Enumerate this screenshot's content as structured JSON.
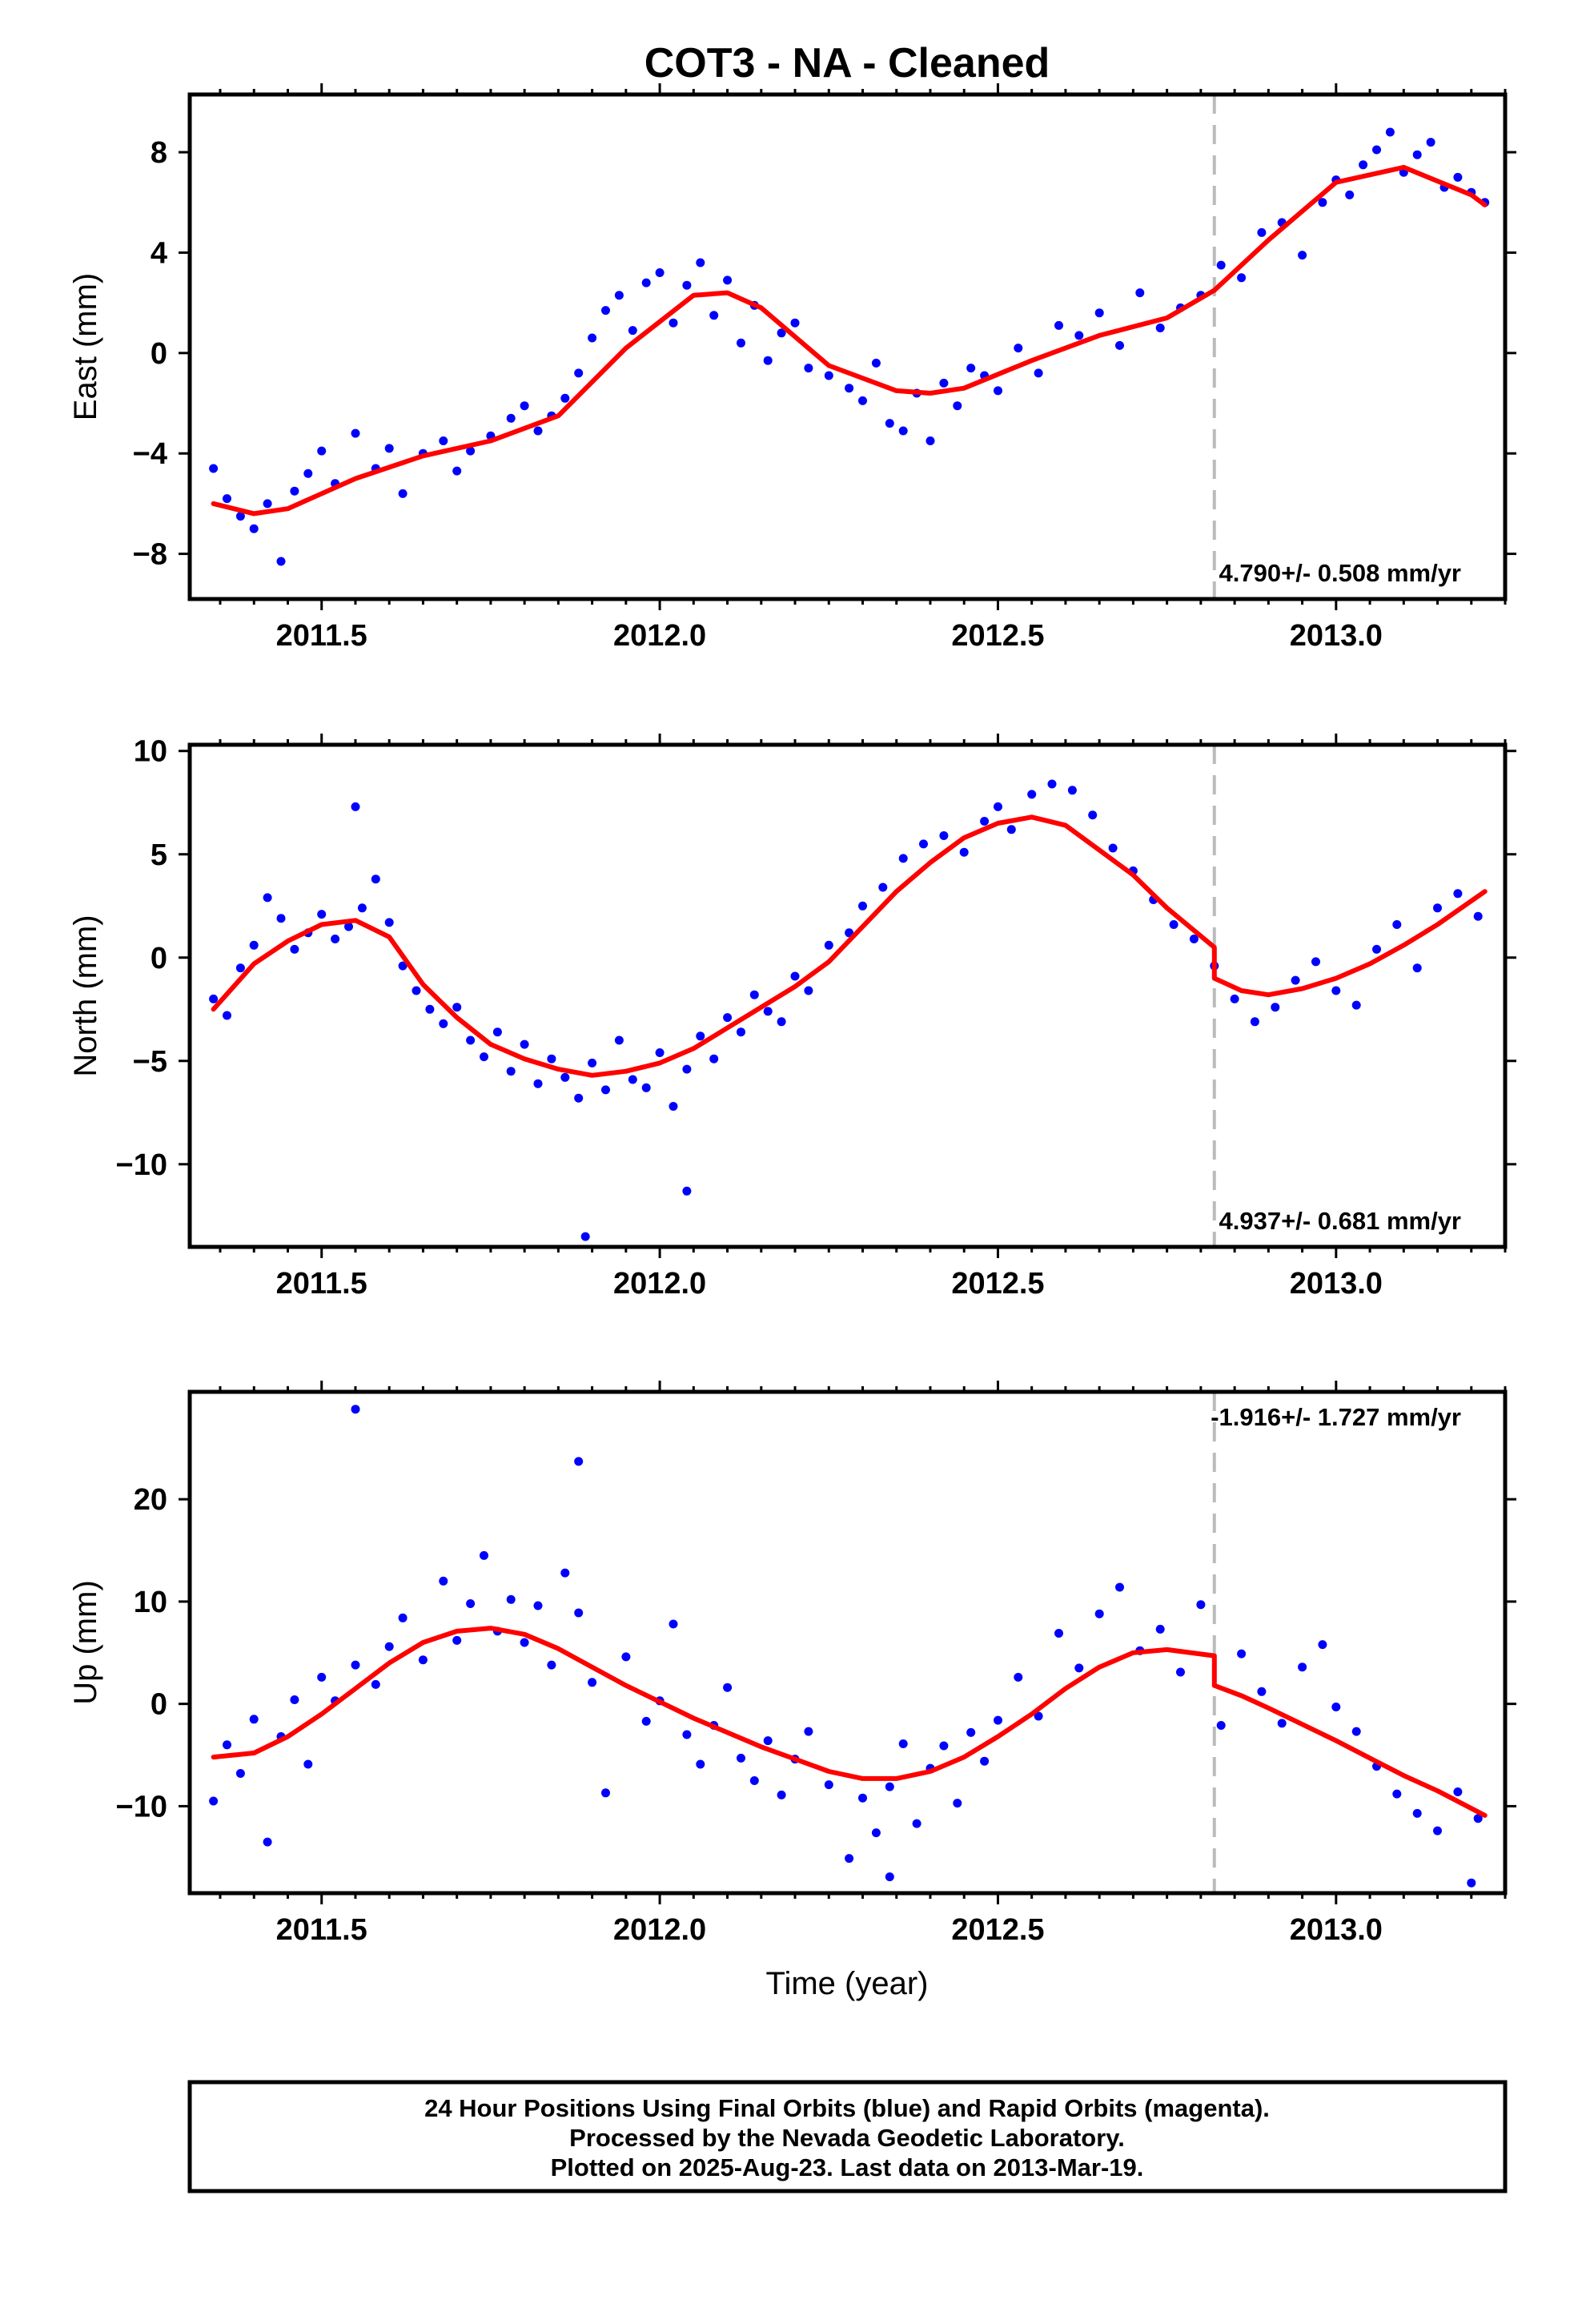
{
  "title": "COT3  - NA - Cleaned",
  "xlabel": "Time (year)",
  "caption": [
    "24 Hour Positions Using Final Orbits (blue) and Rapid Orbits (magenta).",
    "Processed by the Nevada Geodetic Laboratory.",
    "Plotted on 2025-Aug-23. Last data on 2013-Mar-19."
  ],
  "colors": {
    "final_orbits": "#0000ff",
    "rapid_orbits": "#ff00ff",
    "model_fit": "#ff0000",
    "equipment_change": "#bbbbbb"
  },
  "chart_data": [
    {
      "type": "scatter",
      "component": "East",
      "ylabel": "East (mm)",
      "xlim": [
        2011.305,
        2013.25
      ],
      "ylim": [
        -9.8,
        10.3
      ],
      "yticks": [
        -8,
        -4,
        0,
        4,
        8
      ],
      "xticks": [
        2011.5,
        2012.0,
        2012.5,
        2013.0
      ],
      "xtick_labels": [
        "2011.5",
        "2012.0",
        "2012.5",
        "2013.0"
      ],
      "rate_label": "4.790+/- 0.508 mm/yr",
      "break_epoch": 2012.82,
      "fit": {
        "x": [
          2011.34,
          2011.4,
          2011.45,
          2011.55,
          2011.65,
          2011.75,
          2011.85,
          2011.95,
          2012.05,
          2012.1,
          2012.15,
          2012.25,
          2012.35,
          2012.4,
          2012.45,
          2012.55,
          2012.65,
          2012.75,
          2012.82,
          2012.9,
          2013.0,
          2013.1,
          2013.2,
          2013.22
        ],
        "y": [
          -6.0,
          -6.4,
          -6.2,
          -5.0,
          -4.1,
          -3.5,
          -2.5,
          0.2,
          2.3,
          2.4,
          1.8,
          -0.5,
          -1.5,
          -1.6,
          -1.4,
          -0.3,
          0.7,
          1.4,
          2.5,
          4.5,
          6.8,
          7.4,
          6.3,
          5.9
        ]
      },
      "series": [
        {
          "name": "Final Orbits",
          "color": "#0000ff",
          "x": [
            2011.34,
            2011.36,
            2011.38,
            2011.4,
            2011.42,
            2011.44,
            2011.46,
            2011.48,
            2011.5,
            2011.52,
            2011.55,
            2011.58,
            2011.6,
            2011.62,
            2011.65,
            2011.68,
            2011.7,
            2011.72,
            2011.75,
            2011.78,
            2011.8,
            2011.82,
            2011.84,
            2011.86,
            2011.88,
            2011.9,
            2011.92,
            2011.94,
            2011.96,
            2011.98,
            2012.0,
            2012.02,
            2012.04,
            2012.06,
            2012.08,
            2012.1,
            2012.12,
            2012.14,
            2012.16,
            2012.18,
            2012.2,
            2012.22,
            2012.25,
            2012.28,
            2012.3,
            2012.32,
            2012.34,
            2012.36,
            2012.38,
            2012.4,
            2012.42,
            2012.44,
            2012.46,
            2012.48,
            2012.5,
            2012.53,
            2012.56,
            2012.59,
            2012.62,
            2012.65,
            2012.68,
            2012.71,
            2012.74,
            2012.77,
            2012.8,
            2012.83,
            2012.86,
            2012.89,
            2012.92,
            2012.95,
            2012.98,
            2013.0,
            2013.02,
            2013.04,
            2013.06,
            2013.08,
            2013.1,
            2013.12,
            2013.14,
            2013.16,
            2013.18,
            2013.2,
            2013.22
          ],
          "y": [
            -4.6,
            -5.8,
            -6.5,
            -7.0,
            -6.0,
            -8.3,
            -5.5,
            -4.8,
            -3.9,
            -5.2,
            -3.2,
            -4.6,
            -3.8,
            -5.6,
            -4.0,
            -3.5,
            -4.7,
            -3.9,
            -3.3,
            -2.6,
            -2.1,
            -3.1,
            -2.5,
            -1.8,
            -0.8,
            0.6,
            1.7,
            2.3,
            0.9,
            2.8,
            3.2,
            1.2,
            2.7,
            3.6,
            1.5,
            2.9,
            0.4,
            1.9,
            -0.3,
            0.8,
            1.2,
            -0.6,
            -0.9,
            -1.4,
            -1.9,
            -0.4,
            -2.8,
            -3.1,
            -1.6,
            -3.5,
            -1.2,
            -2.1,
            -0.6,
            -0.9,
            -1.5,
            0.2,
            -0.8,
            1.1,
            0.7,
            1.6,
            0.3,
            2.4,
            1.0,
            1.8,
            2.3,
            3.5,
            3.0,
            4.8,
            5.2,
            3.9,
            6.0,
            6.9,
            6.3,
            7.5,
            8.1,
            8.8,
            7.2,
            7.9,
            8.4,
            6.6,
            7.0,
            6.4,
            6.0
          ]
        }
      ]
    },
    {
      "type": "scatter",
      "component": "North",
      "ylabel": "North (mm)",
      "xlim": [
        2011.305,
        2013.25
      ],
      "ylim": [
        -14.0,
        10.3
      ],
      "yticks": [
        -10,
        -5,
        0,
        5,
        10
      ],
      "xticks": [
        2011.5,
        2012.0,
        2012.5,
        2013.0
      ],
      "xtick_labels": [
        "2011.5",
        "2012.0",
        "2012.5",
        "2013.0"
      ],
      "rate_label": "4.937+/- 0.681 mm/yr",
      "break_epoch": 2012.82,
      "fit": {
        "x": [
          2011.34,
          2011.4,
          2011.45,
          2011.5,
          2011.55,
          2011.6,
          2011.65,
          2011.7,
          2011.75,
          2011.8,
          2011.85,
          2011.9,
          2011.95,
          2012.0,
          2012.05,
          2012.1,
          2012.15,
          2012.2,
          2012.25,
          2012.3,
          2012.35,
          2012.4,
          2012.45,
          2012.5,
          2012.55,
          2012.6,
          2012.65,
          2012.7,
          2012.75,
          2012.82,
          2012.82,
          2012.86,
          2012.9,
          2012.95,
          2013.0,
          2013.05,
          2013.1,
          2013.15,
          2013.22
        ],
        "y": [
          -2.5,
          -0.3,
          0.8,
          1.6,
          1.8,
          1.0,
          -1.3,
          -2.9,
          -4.2,
          -4.9,
          -5.4,
          -5.7,
          -5.5,
          -5.1,
          -4.4,
          -3.4,
          -2.4,
          -1.4,
          -0.2,
          1.5,
          3.2,
          4.6,
          5.8,
          6.5,
          6.8,
          6.4,
          5.2,
          4.0,
          2.4,
          0.5,
          -1.0,
          -1.6,
          -1.8,
          -1.5,
          -1.0,
          -0.3,
          0.6,
          1.6,
          3.2
        ]
      },
      "series": [
        {
          "name": "Final Orbits",
          "color": "#0000ff",
          "x": [
            2011.34,
            2011.36,
            2011.38,
            2011.4,
            2011.42,
            2011.44,
            2011.46,
            2011.48,
            2011.5,
            2011.52,
            2011.54,
            2011.56,
            2011.58,
            2011.6,
            2011.62,
            2011.64,
            2011.66,
            2011.68,
            2011.7,
            2011.72,
            2011.74,
            2011.76,
            2011.78,
            2011.8,
            2011.82,
            2011.84,
            2011.86,
            2011.88,
            2011.9,
            2011.92,
            2011.94,
            2011.96,
            2011.98,
            2012.0,
            2012.02,
            2012.04,
            2012.06,
            2012.08,
            2012.1,
            2012.12,
            2012.14,
            2012.16,
            2012.18,
            2012.2,
            2012.22,
            2012.25,
            2012.28,
            2012.3,
            2012.33,
            2012.36,
            2012.39,
            2012.42,
            2012.45,
            2012.48,
            2012.5,
            2012.52,
            2012.55,
            2012.58,
            2012.61,
            2012.64,
            2012.67,
            2012.7,
            2012.73,
            2012.76,
            2012.79,
            2012.82,
            2012.85,
            2012.88,
            2012.91,
            2012.94,
            2012.97,
            2013.0,
            2013.03,
            2013.06,
            2013.09,
            2013.12,
            2013.15,
            2013.18,
            2013.21,
            2011.55,
            2011.89,
            2012.04
          ],
          "y": [
            -2.0,
            -2.8,
            -0.5,
            0.6,
            2.9,
            1.9,
            0.4,
            1.2,
            2.1,
            0.9,
            1.5,
            2.4,
            3.8,
            1.7,
            -0.4,
            -1.6,
            -2.5,
            -3.2,
            -2.4,
            -4.0,
            -4.8,
            -3.6,
            -5.5,
            -4.2,
            -6.1,
            -4.9,
            -5.8,
            -6.8,
            -5.1,
            -6.4,
            -4.0,
            -5.9,
            -6.3,
            -4.6,
            -7.2,
            -5.4,
            -3.8,
            -4.9,
            -2.9,
            -3.6,
            -1.8,
            -2.6,
            -3.1,
            -0.9,
            -1.6,
            0.6,
            1.2,
            2.5,
            3.4,
            4.8,
            5.5,
            5.9,
            5.1,
            6.6,
            7.3,
            6.2,
            7.9,
            8.4,
            8.1,
            6.9,
            5.3,
            4.2,
            2.8,
            1.6,
            0.9,
            -0.4,
            -2.0,
            -3.1,
            -2.4,
            -1.1,
            -0.2,
            -1.6,
            -2.3,
            0.4,
            1.6,
            -0.5,
            2.4,
            3.1,
            2.0,
            7.3,
            -13.5,
            -11.3
          ]
        }
      ]
    },
    {
      "type": "scatter",
      "component": "Up",
      "ylabel": "Up (mm)",
      "xlim": [
        2011.305,
        2013.25
      ],
      "ylim": [
        -18.5,
        30.5
      ],
      "yticks": [
        -10,
        0,
        10,
        20
      ],
      "xticks": [
        2011.5,
        2012.0,
        2012.5,
        2013.0
      ],
      "xtick_labels": [
        "2011.5",
        "2012.0",
        "2012.5",
        "2013.0"
      ],
      "rate_label": "-1.916+/- 1.727 mm/yr",
      "break_epoch": 2012.82,
      "fit": {
        "x": [
          2011.34,
          2011.4,
          2011.45,
          2011.5,
          2011.55,
          2011.6,
          2011.65,
          2011.7,
          2011.75,
          2011.8,
          2011.85,
          2011.9,
          2011.95,
          2012.0,
          2012.05,
          2012.1,
          2012.15,
          2012.2,
          2012.25,
          2012.3,
          2012.35,
          2012.4,
          2012.45,
          2012.5,
          2012.55,
          2012.6,
          2012.65,
          2012.7,
          2012.75,
          2012.82,
          2012.82,
          2012.86,
          2012.9,
          2012.95,
          2013.0,
          2013.05,
          2013.1,
          2013.15,
          2013.22
        ],
        "y": [
          -5.2,
          -4.8,
          -3.2,
          -1.0,
          1.5,
          4.0,
          6.0,
          7.1,
          7.4,
          6.8,
          5.4,
          3.6,
          1.8,
          0.2,
          -1.4,
          -2.8,
          -4.2,
          -5.4,
          -6.6,
          -7.3,
          -7.3,
          -6.6,
          -5.2,
          -3.2,
          -1.0,
          1.5,
          3.6,
          5.0,
          5.3,
          4.7,
          1.8,
          0.8,
          -0.4,
          -2.0,
          -3.6,
          -5.3,
          -7.0,
          -8.5,
          -10.9
        ]
      },
      "series": [
        {
          "name": "Final Orbits",
          "color": "#0000ff",
          "x": [
            2011.34,
            2011.36,
            2011.38,
            2011.4,
            2011.42,
            2011.44,
            2011.46,
            2011.48,
            2011.5,
            2011.52,
            2011.55,
            2011.58,
            2011.6,
            2011.62,
            2011.65,
            2011.68,
            2011.7,
            2011.72,
            2011.74,
            2011.76,
            2011.78,
            2011.8,
            2011.82,
            2011.84,
            2011.86,
            2011.88,
            2011.9,
            2011.92,
            2011.95,
            2011.98,
            2012.0,
            2012.02,
            2012.04,
            2012.06,
            2012.08,
            2012.1,
            2012.12,
            2012.14,
            2012.16,
            2012.18,
            2012.2,
            2012.22,
            2012.25,
            2012.28,
            2012.3,
            2012.32,
            2012.34,
            2012.36,
            2012.38,
            2012.4,
            2012.42,
            2012.44,
            2012.46,
            2012.48,
            2012.5,
            2012.53,
            2012.56,
            2012.59,
            2012.62,
            2012.65,
            2012.68,
            2012.71,
            2012.74,
            2012.77,
            2012.8,
            2012.83,
            2012.86,
            2012.89,
            2012.92,
            2012.95,
            2012.98,
            2013.0,
            2013.03,
            2013.06,
            2013.09,
            2013.12,
            2013.15,
            2013.18,
            2013.21,
            2011.55,
            2011.88,
            2012.34,
            2013.2
          ],
          "y": [
            -9.5,
            -4.0,
            -6.8,
            -1.5,
            -13.5,
            -3.2,
            0.4,
            -5.9,
            2.6,
            0.3,
            3.8,
            1.9,
            5.6,
            8.4,
            4.3,
            12.0,
            6.2,
            9.8,
            14.5,
            7.1,
            10.2,
            6.0,
            9.6,
            3.8,
            12.8,
            8.9,
            2.1,
            -8.7,
            4.6,
            -1.7,
            0.3,
            7.8,
            -3.0,
            -5.9,
            -2.1,
            1.6,
            -5.3,
            -7.5,
            -3.6,
            -8.9,
            -5.4,
            -2.7,
            -7.9,
            -15.1,
            -9.2,
            -12.6,
            -8.1,
            -3.9,
            -11.7,
            -6.3,
            -4.1,
            -9.7,
            -2.8,
            -5.6,
            -1.6,
            2.6,
            -1.2,
            6.9,
            3.5,
            8.8,
            11.4,
            5.2,
            7.3,
            3.1,
            9.7,
            -2.1,
            4.9,
            1.2,
            -1.9,
            3.6,
            5.8,
            -0.3,
            -2.7,
            -6.1,
            -8.8,
            -10.7,
            -12.4,
            -8.6,
            -11.2,
            28.8,
            23.7,
            -16.9,
            -17.5
          ]
        }
      ]
    }
  ]
}
